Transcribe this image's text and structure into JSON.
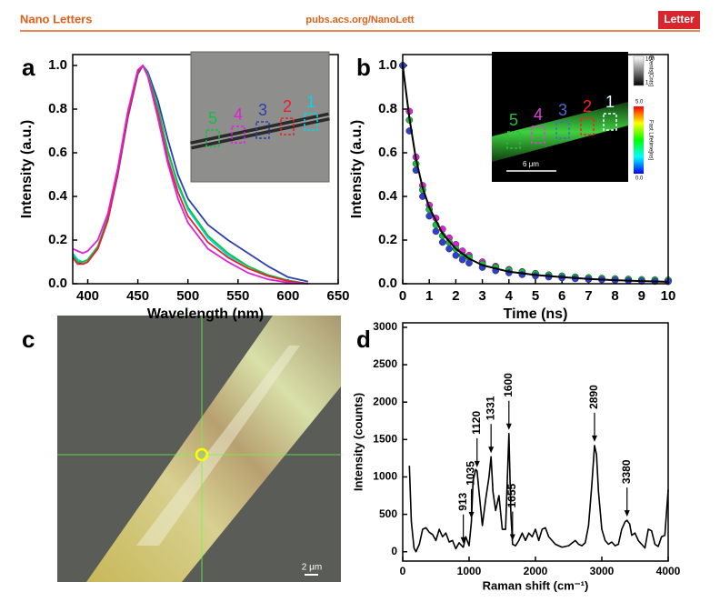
{
  "header": {
    "journal": "Nano Letters",
    "url": "pubs.acs.org/NanoLett",
    "article_type": "Letter"
  },
  "panel_labels": [
    "a",
    "b",
    "c",
    "d"
  ],
  "image": {
    "scale_label": "2 μm"
  },
  "chart_data": [
    {
      "type": "line",
      "xlabel": "Wavelength (nm)",
      "ylabel": "Intensity (a.u.)",
      "x": [
        385,
        390,
        395,
        400,
        410,
        420,
        430,
        440,
        450,
        455,
        460,
        470,
        480,
        490,
        500,
        520,
        540,
        560,
        580,
        600,
        620
      ],
      "series": [
        {
          "name": "1",
          "color": "#00d8e8",
          "values": [
            0.14,
            0.11,
            0.1,
            0.11,
            0.17,
            0.3,
            0.52,
            0.78,
            0.97,
            1.0,
            0.96,
            0.8,
            0.6,
            0.45,
            0.34,
            0.21,
            0.13,
            0.08,
            0.04,
            0.015,
            0.0
          ]
        },
        {
          "name": "2",
          "color": "#e8202a",
          "values": [
            0.12,
            0.09,
            0.09,
            0.1,
            0.16,
            0.29,
            0.51,
            0.77,
            0.97,
            1.0,
            0.95,
            0.78,
            0.57,
            0.42,
            0.31,
            0.19,
            0.12,
            0.07,
            0.035,
            0.012,
            0.0
          ]
        },
        {
          "name": "3",
          "color": "#2c3fb0",
          "values": [
            0.13,
            0.1,
            0.09,
            0.1,
            0.16,
            0.29,
            0.5,
            0.76,
            0.96,
            1.0,
            0.97,
            0.84,
            0.66,
            0.5,
            0.39,
            0.27,
            0.2,
            0.14,
            0.08,
            0.03,
            0.01
          ]
        },
        {
          "name": "4",
          "color": "#e020d8",
          "values": [
            0.16,
            0.15,
            0.14,
            0.15,
            0.2,
            0.32,
            0.53,
            0.79,
            0.98,
            1.0,
            0.95,
            0.76,
            0.55,
            0.39,
            0.28,
            0.16,
            0.1,
            0.05,
            0.02,
            0.005,
            0.0
          ]
        },
        {
          "name": "5",
          "color": "#10c040",
          "values": [
            0.13,
            0.1,
            0.1,
            0.11,
            0.17,
            0.3,
            0.52,
            0.78,
            0.97,
            1.0,
            0.96,
            0.81,
            0.61,
            0.46,
            0.35,
            0.22,
            0.14,
            0.08,
            0.04,
            0.015,
            0.0
          ]
        }
      ],
      "xlim": [
        385,
        650
      ],
      "xticks": [
        400,
        450,
        500,
        550,
        600,
        650
      ],
      "ylim": [
        0,
        1.05
      ],
      "yticks": [
        {
          "value": 0,
          "label": "0.0"
        },
        0.2,
        0.4,
        0.6,
        0.8,
        {
          "value": 1,
          "label": "1.0"
        }
      ]
    },
    {
      "type": "scatter",
      "xlabel": "Time (ns)",
      "ylabel": "Intensity (a.u.)",
      "x": [
        0,
        0.25,
        0.5,
        0.75,
        1,
        1.25,
        1.5,
        1.75,
        2,
        2.25,
        2.5,
        3,
        3.5,
        4,
        4.5,
        5,
        5.5,
        6,
        6.5,
        7,
        7.5,
        8,
        8.5,
        9,
        9.5,
        10
      ],
      "series": [
        {
          "color": "#e020d8",
          "values": [
            1.0,
            0.79,
            0.58,
            0.45,
            0.36,
            0.3,
            0.25,
            0.21,
            0.18,
            0.15,
            0.13,
            0.1,
            0.08,
            0.065,
            0.055,
            0.047,
            0.04,
            0.035,
            0.03,
            0.026,
            0.022,
            0.02,
            0.018,
            0.016,
            0.015,
            0.014
          ]
        },
        {
          "color": "#10c040",
          "values": [
            1.0,
            0.75,
            0.55,
            0.43,
            0.34,
            0.27,
            0.22,
            0.19,
            0.16,
            0.13,
            0.12,
            0.09,
            0.075,
            0.062,
            0.053,
            0.046,
            0.04,
            0.035,
            0.031,
            0.028,
            0.025,
            0.023,
            0.021,
            0.019,
            0.018,
            0.017
          ]
        },
        {
          "color": "#2c3fd0",
          "values": [
            1.0,
            0.7,
            0.52,
            0.4,
            0.31,
            0.24,
            0.19,
            0.16,
            0.13,
            0.11,
            0.095,
            0.075,
            0.06,
            0.05,
            0.042,
            0.036,
            0.031,
            0.027,
            0.023,
            0.02,
            0.018,
            0.016,
            0.014,
            0.012,
            0.011,
            0.01
          ]
        }
      ],
      "fit": {
        "color": "#000000",
        "x": [
          0,
          0.25,
          0.5,
          0.75,
          1,
          1.5,
          2,
          2.5,
          3,
          4,
          5,
          6,
          7,
          8,
          9,
          10
        ],
        "values": [
          1.0,
          0.76,
          0.57,
          0.44,
          0.35,
          0.23,
          0.16,
          0.115,
          0.085,
          0.055,
          0.04,
          0.03,
          0.022,
          0.016,
          0.012,
          0.009
        ]
      },
      "inset": {
        "region_labels": [
          "1",
          "2",
          "3",
          "4",
          "5"
        ],
        "region_colors": [
          "#e8ffff",
          "#ff2020",
          "#4a6ad0",
          "#e040e0",
          "#20c040"
        ],
        "scale_label": "6 μm",
        "events_title": "Events[Cnts]",
        "events_ticks": [
          1,
          100
        ],
        "lifetime_title": "Fast Lifetime[ns]",
        "lifetime_ticks": [
          {
            "value": 0,
            "label": "0.0"
          },
          {
            "value": 5,
            "label": "5.0"
          }
        ]
      },
      "xlim": [
        0,
        10
      ],
      "xticks": [
        0,
        1,
        2,
        3,
        4,
        5,
        6,
        7,
        8,
        9,
        10
      ],
      "ylim": [
        0,
        1.05
      ],
      "yticks": [
        {
          "value": 0,
          "label": "0.0"
        },
        0.2,
        0.4,
        0.6,
        0.8,
        {
          "value": 1,
          "label": "1.0"
        }
      ]
    },
    {
      "type": "line",
      "xlabel": "Raman shift (cm⁻¹)",
      "ylabel": "Intensity (counts)",
      "x": [
        100,
        130,
        170,
        200,
        250,
        300,
        350,
        400,
        450,
        500,
        550,
        600,
        650,
        700,
        750,
        800,
        850,
        900,
        913,
        950,
        1000,
        1035,
        1060,
        1100,
        1120,
        1150,
        1200,
        1250,
        1300,
        1331,
        1360,
        1400,
        1450,
        1500,
        1550,
        1600,
        1630,
        1655,
        1700,
        1750,
        1800,
        1850,
        1900,
        1950,
        2000,
        2050,
        2100,
        2150,
        2200,
        2300,
        2400,
        2500,
        2600,
        2650,
        2700,
        2750,
        2800,
        2850,
        2890,
        2920,
        2950,
        3000,
        3050,
        3100,
        3150,
        3200,
        3250,
        3300,
        3350,
        3380,
        3420,
        3450,
        3500,
        3550,
        3600,
        3650,
        3700,
        3750,
        3800,
        3850,
        3900,
        3950,
        4000
      ],
      "series": [
        {
          "color": "#000000",
          "values": [
            1150,
            400,
            50,
            0,
            100,
            300,
            320,
            260,
            230,
            150,
            300,
            200,
            250,
            130,
            150,
            40,
            120,
            70,
            60,
            200,
            80,
            400,
            950,
            1100,
            1080,
            800,
            350,
            700,
            1000,
            1270,
            800,
            550,
            750,
            300,
            300,
            1580,
            500,
            100,
            80,
            150,
            250,
            150,
            250,
            200,
            300,
            150,
            300,
            320,
            200,
            100,
            60,
            80,
            150,
            100,
            80,
            120,
            350,
            900,
            1420,
            1300,
            800,
            300,
            150,
            100,
            130,
            80,
            100,
            300,
            400,
            420,
            370,
            220,
            250,
            150,
            100,
            50,
            300,
            280,
            100,
            70,
            200,
            220,
            830
          ]
        }
      ],
      "peaks": [
        913,
        1035,
        1120,
        1331,
        1600,
        1655,
        2890,
        3380
      ],
      "xlim": [
        0,
        4000
      ],
      "xticks": [
        0,
        1000,
        2000,
        3000,
        4000
      ],
      "ylim": [
        -125,
        3060
      ],
      "yticks": [
        0,
        500,
        1000,
        1500,
        2000,
        2500,
        3000
      ]
    }
  ]
}
